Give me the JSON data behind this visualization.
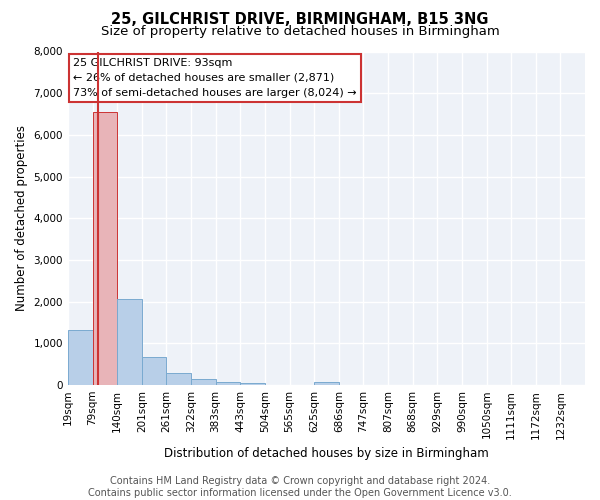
{
  "title": "25, GILCHRIST DRIVE, BIRMINGHAM, B15 3NG",
  "subtitle": "Size of property relative to detached houses in Birmingham",
  "xlabel": "Distribution of detached houses by size in Birmingham",
  "ylabel": "Number of detached properties",
  "footer_line1": "Contains HM Land Registry data © Crown copyright and database right 2024.",
  "footer_line2": "Contains public sector information licensed under the Open Government Licence v3.0.",
  "annotation_line1": "25 GILCHRIST DRIVE: 93sqm",
  "annotation_line2": "← 26% of detached houses are smaller (2,871)",
  "annotation_line3": "73% of semi-detached houses are larger (8,024) →",
  "bin_labels": [
    "19sqm",
    "79sqm",
    "140sqm",
    "201sqm",
    "261sqm",
    "322sqm",
    "383sqm",
    "443sqm",
    "504sqm",
    "565sqm",
    "625sqm",
    "686sqm",
    "747sqm",
    "807sqm",
    "868sqm",
    "929sqm",
    "990sqm",
    "1050sqm",
    "1111sqm",
    "1172sqm",
    "1232sqm"
  ],
  "bar_values": [
    1310,
    6560,
    2060,
    680,
    290,
    135,
    80,
    55,
    0,
    0,
    80,
    0,
    0,
    0,
    0,
    0,
    0,
    0,
    0,
    0,
    0
  ],
  "bar_color": "#b8cfe8",
  "bar_edge_color": "#7aaad0",
  "highlight_bar_index": 1,
  "highlight_color": "#e8b4b8",
  "highlight_edge_color": "#cc3333",
  "vline_color": "#cc3333",
  "ylim": [
    0,
    8000
  ],
  "yticks": [
    0,
    1000,
    2000,
    3000,
    4000,
    5000,
    6000,
    7000,
    8000
  ],
  "bg_color": "#eef2f8",
  "grid_color": "#ffffff",
  "title_fontsize": 10.5,
  "subtitle_fontsize": 9.5,
  "axis_label_fontsize": 8.5,
  "tick_fontsize": 7.5,
  "annotation_fontsize": 8,
  "footer_fontsize": 7
}
